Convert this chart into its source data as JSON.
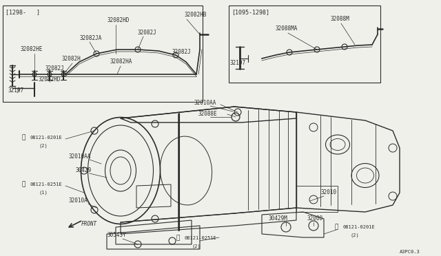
{
  "bg_color": "#f0f0eb",
  "line_color": "#2a2a2a",
  "diagram_code": "A3PC0.3",
  "box1_label": "[1298-   ]",
  "box2_label": "[1095-1298]",
  "figsize": [
    6.4,
    3.72
  ],
  "dpi": 100
}
